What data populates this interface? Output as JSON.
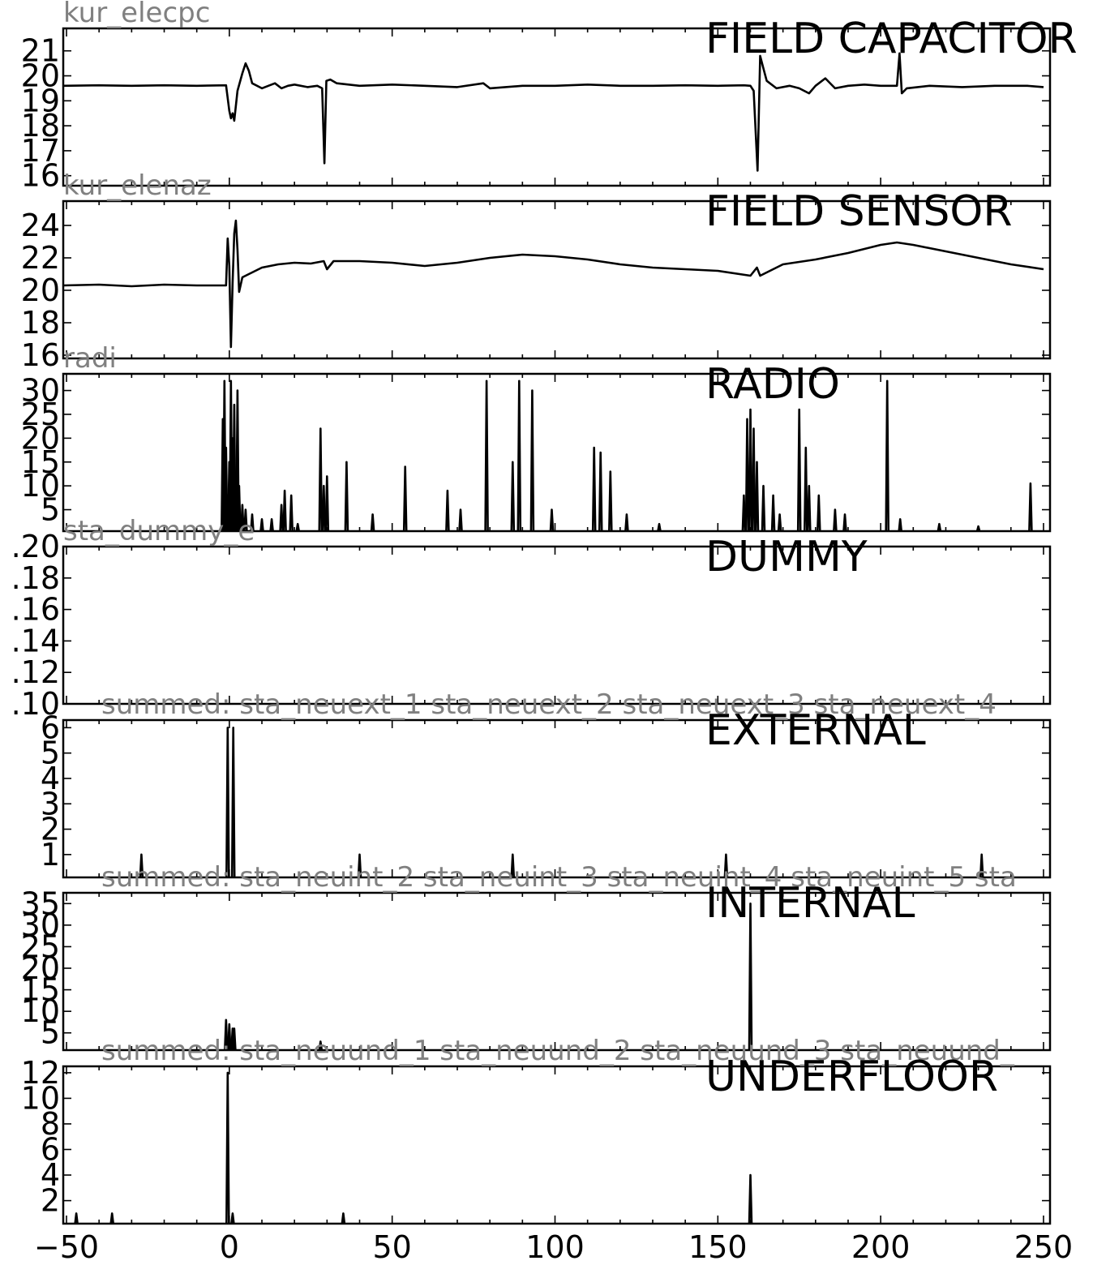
{
  "chart_data": {
    "type": "line",
    "x_ticks": [
      -50,
      0,
      50,
      100,
      150,
      200,
      250
    ],
    "xlim": [
      -51,
      252
    ],
    "panels": [
      {
        "title": "FIELD CAPACITOR",
        "channel": "kur_elecpc",
        "ylim": [
          15.6,
          21.9
        ],
        "y_ticks": [
          16,
          17,
          18,
          19,
          20,
          21
        ],
        "kind": "line",
        "points": [
          [
            -51,
            19.6
          ],
          [
            -40,
            19.62
          ],
          [
            -30,
            19.6
          ],
          [
            -20,
            19.62
          ],
          [
            -10,
            19.6
          ],
          [
            -1,
            19.62
          ],
          [
            0,
            18.6
          ],
          [
            0.5,
            18.3
          ],
          [
            1,
            18.5
          ],
          [
            1.5,
            18.2
          ],
          [
            2.5,
            19.4
          ],
          [
            4,
            20.1
          ],
          [
            5,
            20.5
          ],
          [
            6,
            20.2
          ],
          [
            7,
            19.7
          ],
          [
            10,
            19.5
          ],
          [
            12,
            19.6
          ],
          [
            14,
            19.7
          ],
          [
            16,
            19.5
          ],
          [
            18,
            19.6
          ],
          [
            20,
            19.65
          ],
          [
            24,
            19.55
          ],
          [
            27,
            19.6
          ],
          [
            28.5,
            19.5
          ],
          [
            29.2,
            16.5
          ],
          [
            29.8,
            19.8
          ],
          [
            31,
            19.85
          ],
          [
            33,
            19.7
          ],
          [
            40,
            19.6
          ],
          [
            50,
            19.65
          ],
          [
            60,
            19.6
          ],
          [
            70,
            19.55
          ],
          [
            78,
            19.7
          ],
          [
            80,
            19.5
          ],
          [
            90,
            19.6
          ],
          [
            100,
            19.6
          ],
          [
            110,
            19.65
          ],
          [
            120,
            19.6
          ],
          [
            130,
            19.6
          ],
          [
            140,
            19.62
          ],
          [
            150,
            19.6
          ],
          [
            158,
            19.62
          ],
          [
            160,
            19.6
          ],
          [
            161,
            19.4
          ],
          [
            162.2,
            16.2
          ],
          [
            163,
            20.8
          ],
          [
            164,
            20.3
          ],
          [
            165,
            19.8
          ],
          [
            168,
            19.5
          ],
          [
            172,
            19.6
          ],
          [
            175,
            19.5
          ],
          [
            178,
            19.3
          ],
          [
            180,
            19.6
          ],
          [
            183,
            19.9
          ],
          [
            186,
            19.5
          ],
          [
            190,
            19.6
          ],
          [
            195,
            19.65
          ],
          [
            200,
            19.6
          ],
          [
            205,
            19.6
          ],
          [
            205.8,
            20.9
          ],
          [
            206.5,
            19.3
          ],
          [
            208,
            19.5
          ],
          [
            215,
            19.6
          ],
          [
            225,
            19.55
          ],
          [
            235,
            19.6
          ],
          [
            245,
            19.6
          ],
          [
            250,
            19.55
          ]
        ]
      },
      {
        "title": "FIELD SENSOR",
        "channel": "kur_elenaz",
        "ylim": [
          15.8,
          25.5
        ],
        "y_ticks": [
          16,
          18,
          20,
          22,
          24
        ],
        "kind": "line",
        "points": [
          [
            -51,
            20.3
          ],
          [
            -40,
            20.35
          ],
          [
            -30,
            20.25
          ],
          [
            -20,
            20.35
          ],
          [
            -10,
            20.3
          ],
          [
            -1,
            20.3
          ],
          [
            -0.5,
            23.2
          ],
          [
            0,
            21.5
          ],
          [
            0.5,
            16.5
          ],
          [
            1,
            20.5
          ],
          [
            1.5,
            23.5
          ],
          [
            2,
            24.3
          ],
          [
            2.5,
            22.5
          ],
          [
            3,
            19.9
          ],
          [
            4,
            20.8
          ],
          [
            6,
            21
          ],
          [
            10,
            21.4
          ],
          [
            15,
            21.6
          ],
          [
            20,
            21.7
          ],
          [
            25,
            21.65
          ],
          [
            29,
            21.8
          ],
          [
            30,
            21.3
          ],
          [
            32,
            21.8
          ],
          [
            40,
            21.8
          ],
          [
            50,
            21.7
          ],
          [
            60,
            21.5
          ],
          [
            70,
            21.7
          ],
          [
            80,
            22
          ],
          [
            90,
            22.2
          ],
          [
            100,
            22.1
          ],
          [
            110,
            21.9
          ],
          [
            120,
            21.6
          ],
          [
            130,
            21.4
          ],
          [
            140,
            21.3
          ],
          [
            150,
            21.2
          ],
          [
            160,
            20.9
          ],
          [
            162,
            21.4
          ],
          [
            163,
            20.9
          ],
          [
            170,
            21.6
          ],
          [
            180,
            21.9
          ],
          [
            190,
            22.3
          ],
          [
            200,
            22.8
          ],
          [
            205,
            22.95
          ],
          [
            210,
            22.8
          ],
          [
            220,
            22.4
          ],
          [
            230,
            22
          ],
          [
            240,
            21.6
          ],
          [
            250,
            21.3
          ]
        ]
      },
      {
        "title": "RADIO",
        "channel": "radi",
        "ylim": [
          0.5,
          33.5
        ],
        "y_ticks": [
          5,
          10,
          15,
          20,
          25,
          30
        ],
        "kind": "spikes",
        "points": [
          [
            -2,
            24
          ],
          [
            -1.5,
            32
          ],
          [
            -1,
            18
          ],
          [
            -0.5,
            8
          ],
          [
            0,
            15
          ],
          [
            0.5,
            32
          ],
          [
            1,
            20
          ],
          [
            1.5,
            27
          ],
          [
            2,
            12
          ],
          [
            2.5,
            30
          ],
          [
            3,
            10
          ],
          [
            4,
            6
          ],
          [
            5,
            5
          ],
          [
            7,
            4
          ],
          [
            10,
            3
          ],
          [
            13,
            3
          ],
          [
            16,
            6
          ],
          [
            17,
            9
          ],
          [
            19,
            8
          ],
          [
            21,
            2
          ],
          [
            28,
            22
          ],
          [
            29,
            10
          ],
          [
            30,
            12
          ],
          [
            36,
            15
          ],
          [
            44,
            4
          ],
          [
            54,
            14
          ],
          [
            67,
            9
          ],
          [
            71,
            5
          ],
          [
            79,
            32
          ],
          [
            87,
            15
          ],
          [
            89,
            32
          ],
          [
            93,
            30
          ],
          [
            99,
            5
          ],
          [
            112,
            18
          ],
          [
            114,
            17
          ],
          [
            117,
            13
          ],
          [
            122,
            4
          ],
          [
            132,
            2
          ],
          [
            158,
            8
          ],
          [
            159,
            24
          ],
          [
            160,
            26
          ],
          [
            161,
            22
          ],
          [
            162,
            15
          ],
          [
            164,
            10
          ],
          [
            167,
            8
          ],
          [
            169,
            4
          ],
          [
            175,
            26
          ],
          [
            177,
            18
          ],
          [
            178,
            10
          ],
          [
            181,
            8
          ],
          [
            186,
            5
          ],
          [
            189,
            4
          ],
          [
            202,
            32
          ],
          [
            206,
            3
          ],
          [
            218,
            2
          ],
          [
            230,
            1.5
          ],
          [
            246,
            10.5
          ]
        ]
      },
      {
        "title": "DUMMY",
        "channel": "sta_dummy_e",
        "ylim": [
          0.1,
          0.2
        ],
        "y_ticks": [
          0.1,
          0.12,
          0.14,
          0.16,
          0.18,
          0.2
        ],
        "y_tick_labels": [
          ".10",
          ".12",
          ".14",
          ".16",
          ".18",
          ".20"
        ],
        "kind": "none",
        "points": []
      },
      {
        "title": "EXTERNAL",
        "channel": "summed: sta_neuext_1 sta_neuext_2 sta_neuext_3 sta_neuext_4",
        "ylim": [
          0.1,
          6.3
        ],
        "y_ticks": [
          1,
          2,
          3,
          4,
          5,
          6
        ],
        "kind": "spikes",
        "points": [
          [
            -27,
            1
          ],
          [
            -0.5,
            6
          ],
          [
            1.2,
            6
          ],
          [
            40,
            1
          ],
          [
            87,
            1
          ],
          [
            152.5,
            1
          ],
          [
            231,
            1
          ]
        ]
      },
      {
        "title": "INTERNAL",
        "channel": "summed: sta_neuint_2 sta_neuint_3 sta_neuint_4 sta_neuint_5 sta",
        "ylim": [
          1,
          37.5
        ],
        "y_ticks": [
          5,
          10,
          15,
          20,
          25,
          30,
          35
        ],
        "kind": "spikes",
        "points": [
          [
            -1,
            8
          ],
          [
            0,
            7
          ],
          [
            1,
            6
          ],
          [
            1.5,
            6
          ],
          [
            28,
            3
          ],
          [
            160,
            35
          ]
        ]
      },
      {
        "title": "UNDERFLOOR",
        "channel": "summed: sta_neuund_1 sta_neuund_2 sta_neuund_3 sta_neuund_",
        "ylim": [
          0.2,
          12.5
        ],
        "y_ticks": [
          2,
          4,
          6,
          8,
          10,
          12
        ],
        "kind": "spikes",
        "points": [
          [
            -47,
            1
          ],
          [
            -36,
            1
          ],
          [
            -0.5,
            12
          ],
          [
            1,
            1
          ],
          [
            35,
            1
          ],
          [
            160,
            4
          ]
        ]
      }
    ]
  }
}
